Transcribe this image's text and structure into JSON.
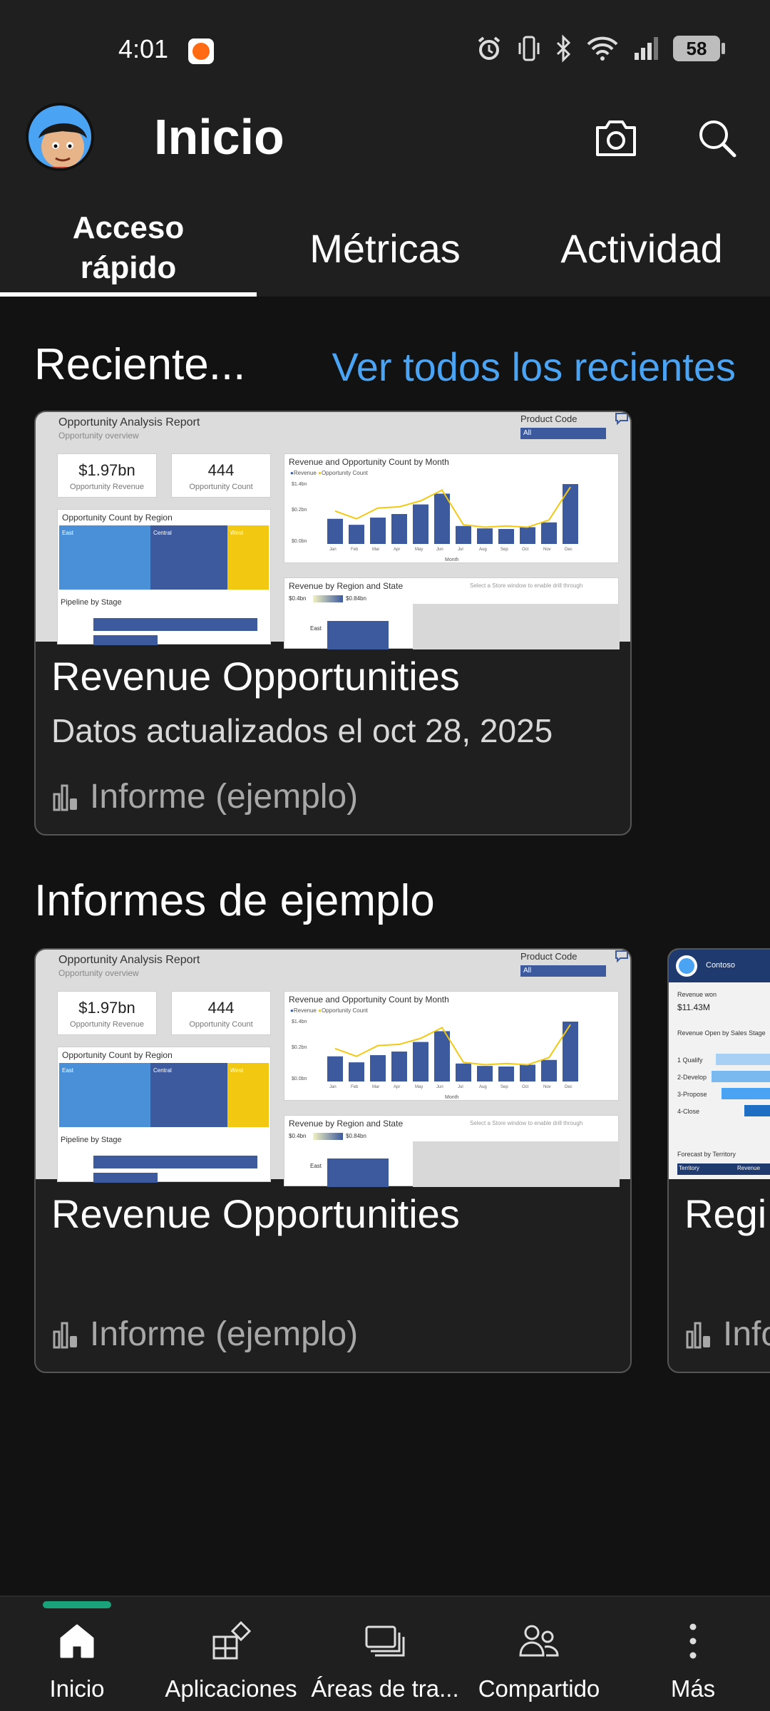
{
  "status_bar": {
    "time": "4:01",
    "battery": "58"
  },
  "header": {
    "title": "Inicio"
  },
  "tabs": [
    {
      "label": "Acceso rápido",
      "line1": "Acceso",
      "line2": "rápido",
      "selected": true
    },
    {
      "label": "Métricas",
      "selected": false
    },
    {
      "label": "Actividad",
      "selected": false
    }
  ],
  "recents": {
    "title": "Reciente...",
    "see_all": "Ver todos los recientes",
    "cards": [
      {
        "title": "Revenue Opportunities",
        "subtitle": "Datos actualizados el oct 28, 2025",
        "type": "Informe (ejemplo)"
      }
    ]
  },
  "samples": {
    "title": "Informes de ejemplo",
    "cards": [
      {
        "title": "Revenue Opportunities",
        "subtitle": "",
        "type": "Informe (ejemplo)"
      },
      {
        "title": "Regi",
        "type": "Info"
      }
    ]
  },
  "thumbnail": {
    "report_title": "Opportunity Analysis Report",
    "report_subtitle": "Opportunity overview",
    "product_code_label": "Product Code",
    "product_code_value": "All",
    "kpi1_value": "$1.97bn",
    "kpi1_label": "Opportunity Revenue",
    "kpi2_value": "444",
    "kpi2_label": "Opportunity Count",
    "region_title": "Opportunity Count by Region",
    "region_labels": [
      "East",
      "Central",
      "West"
    ],
    "pipeline_title": "Pipeline by Stage",
    "month_chart_title": "Revenue and Opportunity Count by Month",
    "legend": [
      "Revenue",
      "Opportunity Count"
    ],
    "month_labels": [
      "Jan",
      "Feb",
      "Mar",
      "Apr",
      "May",
      "Jun",
      "Jul",
      "Aug",
      "Sep",
      "Oct",
      "Nov",
      "Dec"
    ],
    "month_bars": [
      0.42,
      0.32,
      0.44,
      0.5,
      0.66,
      0.84,
      0.3,
      0.26,
      0.25,
      0.28,
      0.36,
      1.0
    ],
    "month_line": [
      0.55,
      0.42,
      0.6,
      0.62,
      0.72,
      0.9,
      0.32,
      0.28,
      0.3,
      0.28,
      0.4,
      0.95
    ],
    "y_ticks": [
      "$1.4bn",
      "$0.2bn",
      "$0.0bn"
    ],
    "month_axis": "Month",
    "state_chart_title": "Revenue by Region and State",
    "state_hint": "Select a Store window to enable drill through",
    "state_range": [
      "$0.4bn",
      "$0.84bn"
    ],
    "state_east": "East"
  },
  "card3_thumb": {
    "brand": "Contoso",
    "revenue_won_label": "Revenue won",
    "revenue_won_value": "$11.43M",
    "stage_title": "Revenue Open by Sales Stage",
    "stages": [
      "1 Qualify",
      "2-Develop",
      "3-Propose",
      "4-Close"
    ],
    "forecast": "Forecast by Territory",
    "col1": "Territory",
    "col2": "Revenue"
  },
  "bottom_nav": [
    {
      "label": "Inicio",
      "icon": "home-icon",
      "active": true
    },
    {
      "label": "Aplicaciones",
      "icon": "apps-icon",
      "active": false
    },
    {
      "label": "Áreas de tra...",
      "icon": "workspaces-icon",
      "active": false
    },
    {
      "label": "Compartido",
      "icon": "shared-icon",
      "active": false
    },
    {
      "label": "Más",
      "icon": "more-icon",
      "active": false
    }
  ],
  "colors": {
    "accent_link": "#4aa3f3",
    "nav_indicator": "#1aa37a",
    "bar": "#3d5a9e",
    "line": "#f2c811"
  }
}
